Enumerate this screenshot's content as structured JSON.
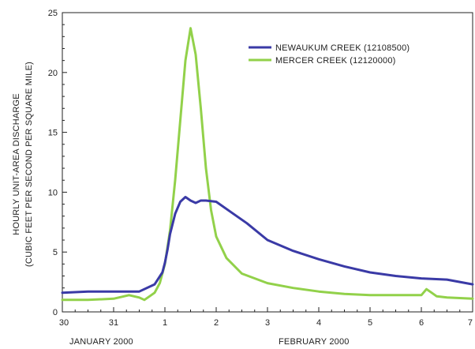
{
  "chart_data": {
    "type": "line",
    "xlabel_months": [
      "JANUARY 2000",
      "FEBRUARY 2000"
    ],
    "ylabel_line1": "HOURLY UNIT-AREA DISCHARGE",
    "ylabel_line2": "(CUBIC FEET PER SECOND PER SQUARE MILE)",
    "x_tick_labels": [
      "30",
      "31",
      "1",
      "2",
      "3",
      "4",
      "5",
      "6",
      "7"
    ],
    "y_ticks": [
      0,
      5,
      10,
      15,
      20,
      25
    ],
    "ylim": [
      0,
      25
    ],
    "xlim": [
      0,
      8
    ],
    "legend_placement": "top-right",
    "series": [
      {
        "name": "NEWAUKUM CREEK (12108500)",
        "color": "#3a3aa6",
        "x": [
          0,
          0.5,
          1.0,
          1.5,
          1.8,
          1.95,
          2.0,
          2.05,
          2.1,
          2.2,
          2.3,
          2.4,
          2.5,
          2.6,
          2.7,
          2.8,
          3.0,
          3.3,
          3.6,
          4.0,
          4.5,
          5.0,
          5.5,
          6.0,
          6.5,
          7.0,
          7.5,
          8.0
        ],
        "values": [
          1.6,
          1.7,
          1.7,
          1.7,
          2.3,
          3.3,
          4.1,
          5.2,
          6.5,
          8.2,
          9.2,
          9.6,
          9.3,
          9.1,
          9.3,
          9.3,
          9.2,
          8.3,
          7.4,
          6.0,
          5.1,
          4.4,
          3.8,
          3.3,
          3.0,
          2.8,
          2.7,
          2.3
        ]
      },
      {
        "name": "MERCER CREEK (12120000)",
        "color": "#92d14a",
        "x": [
          0,
          0.5,
          1.0,
          1.3,
          1.5,
          1.6,
          1.7,
          1.8,
          1.9,
          2.0,
          2.1,
          2.2,
          2.3,
          2.4,
          2.5,
          2.6,
          2.7,
          2.8,
          2.9,
          3.0,
          3.2,
          3.5,
          4.0,
          4.5,
          5.0,
          5.5,
          6.0,
          6.5,
          7.0,
          7.1,
          7.2,
          7.3,
          7.5,
          8.0
        ],
        "values": [
          1.0,
          1.0,
          1.1,
          1.4,
          1.2,
          1.0,
          1.3,
          1.6,
          2.4,
          4.0,
          6.8,
          11.0,
          16.0,
          21.0,
          23.7,
          21.5,
          17.0,
          12.0,
          8.5,
          6.3,
          4.5,
          3.2,
          2.4,
          2.0,
          1.7,
          1.5,
          1.4,
          1.4,
          1.4,
          1.9,
          1.6,
          1.3,
          1.2,
          1.1
        ]
      }
    ]
  }
}
